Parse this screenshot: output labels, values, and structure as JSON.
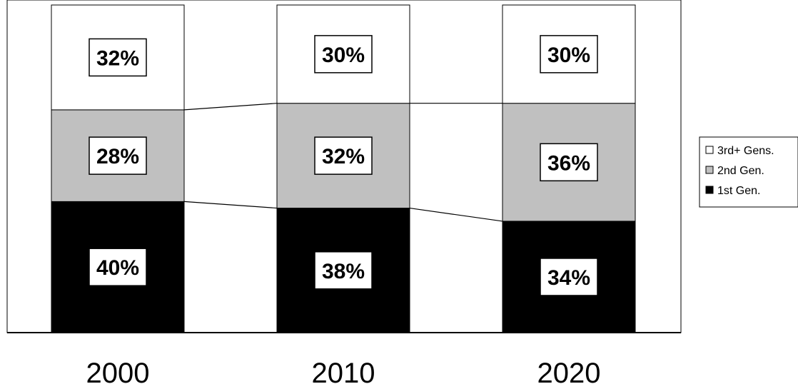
{
  "chart_data": {
    "type": "bar",
    "stacked": true,
    "percent_stacked": true,
    "categories": [
      "2000",
      "2010",
      "2020"
    ],
    "series": [
      {
        "name": "1st Gen.",
        "values": [
          40,
          38,
          34
        ],
        "labels": [
          "40%",
          "38%",
          "34%"
        ],
        "color": "#000000"
      },
      {
        "name": "2nd Gen.",
        "values": [
          28,
          32,
          36
        ],
        "labels": [
          "28%",
          "32%",
          "36%"
        ],
        "color": "#c0c0c0"
      },
      {
        "name": "3rd+ Gens.",
        "values": [
          32,
          30,
          30
        ],
        "labels": [
          "32%",
          "30%",
          "30%"
        ],
        "color": "#ffffff"
      }
    ],
    "ylim": [
      0,
      100
    ],
    "legend": {
      "position": "right",
      "order": [
        "3rd+ Gens.",
        "2nd Gen.",
        "1st Gen."
      ]
    },
    "series_lines": true,
    "grid": false,
    "title": "",
    "xlabel": "",
    "ylabel": ""
  }
}
